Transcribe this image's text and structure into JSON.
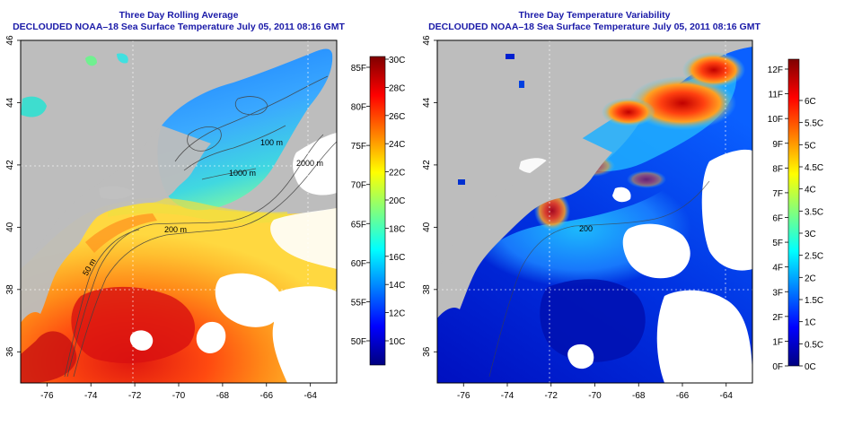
{
  "panels": [
    {
      "id": "left",
      "title": "Three Day Rolling Average",
      "subtitle": "DECLOUDED NOAA–18 Sea Surface Temperature July 05, 2011 08:16 GMT",
      "x_ticks": [
        "-76",
        "-74",
        "-72",
        "-70",
        "-68",
        "-66",
        "-64"
      ],
      "y_ticks": [
        "36",
        "38",
        "40",
        "42",
        "44",
        "46"
      ],
      "contour_labels": [
        "100 m",
        "1000 m",
        "2000 m",
        "200 m",
        "50 m"
      ],
      "colorbar_celsius": [
        "30C",
        "28C",
        "26C",
        "24C",
        "22C",
        "20C",
        "18C",
        "16C",
        "14C",
        "12C",
        "10C"
      ],
      "colorbar_fahrenheit": [
        "85F",
        "80F",
        "75F",
        "70F",
        "65F",
        "60F",
        "55F",
        "50F"
      ]
    },
    {
      "id": "right",
      "title": "Three Day Temperature Variability",
      "subtitle": "DECLOUDED NOAA–18 Sea Surface Temperature July 05, 2011 08:16 GMT",
      "x_ticks": [
        "-76",
        "-74",
        "-72",
        "-70",
        "-68",
        "-66",
        "-64"
      ],
      "y_ticks": [
        "36",
        "38",
        "40",
        "42",
        "44",
        "46"
      ],
      "contour_labels": [
        "200"
      ],
      "colorbar_fahrenheit": [
        "12F",
        "11F",
        "10F",
        "9F",
        "8F",
        "7F",
        "6F",
        "5F",
        "4F",
        "3F",
        "2F",
        "1F",
        "0F"
      ],
      "colorbar_celsius": [
        "6C",
        "5.5C",
        "5C",
        "4.5C",
        "4C",
        "3.5C",
        "3C",
        "2.5C",
        "2C",
        "1.5C",
        "1C",
        "0.5C",
        "0C"
      ]
    }
  ],
  "colors": {
    "land": "#bdbdbd",
    "cloud": "#ffffff",
    "title": "#1a1aa8",
    "jet": [
      "#00007f",
      "#0000ff",
      "#007fff",
      "#00ffff",
      "#7fff7f",
      "#ffff00",
      "#ff7f00",
      "#ff0000",
      "#7f0000"
    ]
  }
}
